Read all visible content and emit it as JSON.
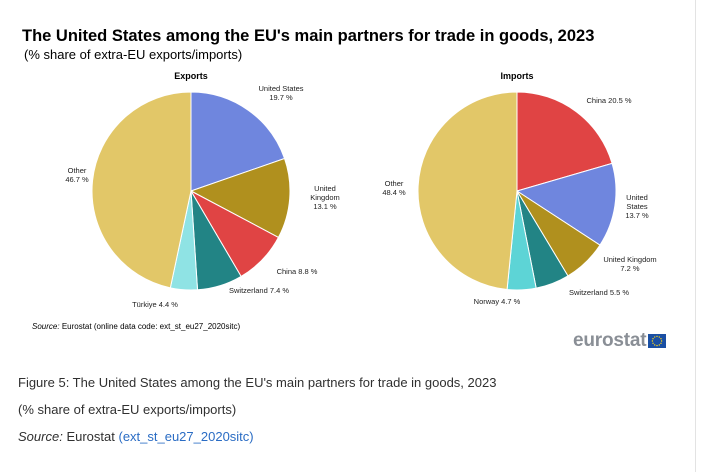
{
  "header": {
    "title": "The United States among the EU's main partners for trade in goods, 2023",
    "subtitle": "(% share of extra-EU exports/imports)"
  },
  "chart_data": [
    {
      "type": "pie",
      "title": "Exports",
      "slices": [
        {
          "label": "United States",
          "value": 19.7,
          "display": "19.7 %",
          "color": "#6f86de"
        },
        {
          "label": "United Kingdom",
          "value": 13.1,
          "display": "13.1 %",
          "color": "#b0901e"
        },
        {
          "label": "China",
          "value": 8.8,
          "display": "8.8 %",
          "color": "#e04444"
        },
        {
          "label": "Switzerland",
          "value": 7.4,
          "display": "7.4 %",
          "color": "#228485"
        },
        {
          "label": "Türkiye",
          "value": 4.4,
          "display": "4.4 %",
          "color": "#8fe3e4"
        },
        {
          "label": "Other",
          "value": 46.7,
          "display": "46.7 %",
          "color": "#e2c768"
        }
      ]
    },
    {
      "type": "pie",
      "title": "Imports",
      "slices": [
        {
          "label": "China",
          "value": 20.5,
          "display": "20.5 %",
          "color": "#e04444"
        },
        {
          "label": "United States",
          "value": 13.7,
          "display": "13.7 %",
          "color": "#6f86de"
        },
        {
          "label": "United Kingdom",
          "value": 7.2,
          "display": "7.2 %",
          "color": "#b0901e"
        },
        {
          "label": "Switzerland",
          "value": 5.5,
          "display": "5.5 %",
          "color": "#228485"
        },
        {
          "label": "Norway",
          "value": 4.7,
          "display": "4.7 %",
          "color": "#5dd4d6"
        },
        {
          "label": "Other",
          "value": 48.4,
          "display": "48.4 %",
          "color": "#e2c768"
        }
      ]
    }
  ],
  "source": {
    "label": "Source:",
    "text": "Eurostat (online data code: ext_st_eu27_2020sitc)"
  },
  "logo": {
    "text": "eurostat"
  },
  "caption": {
    "line1": "Figure 5: The United States among the EU's main partners for trade in goods, 2023",
    "line2": "(% share of extra-EU exports/imports)",
    "source_label": "Source:",
    "source_text": "Eurostat",
    "source_link": "(ext_st_eu27_2020sitc)"
  }
}
